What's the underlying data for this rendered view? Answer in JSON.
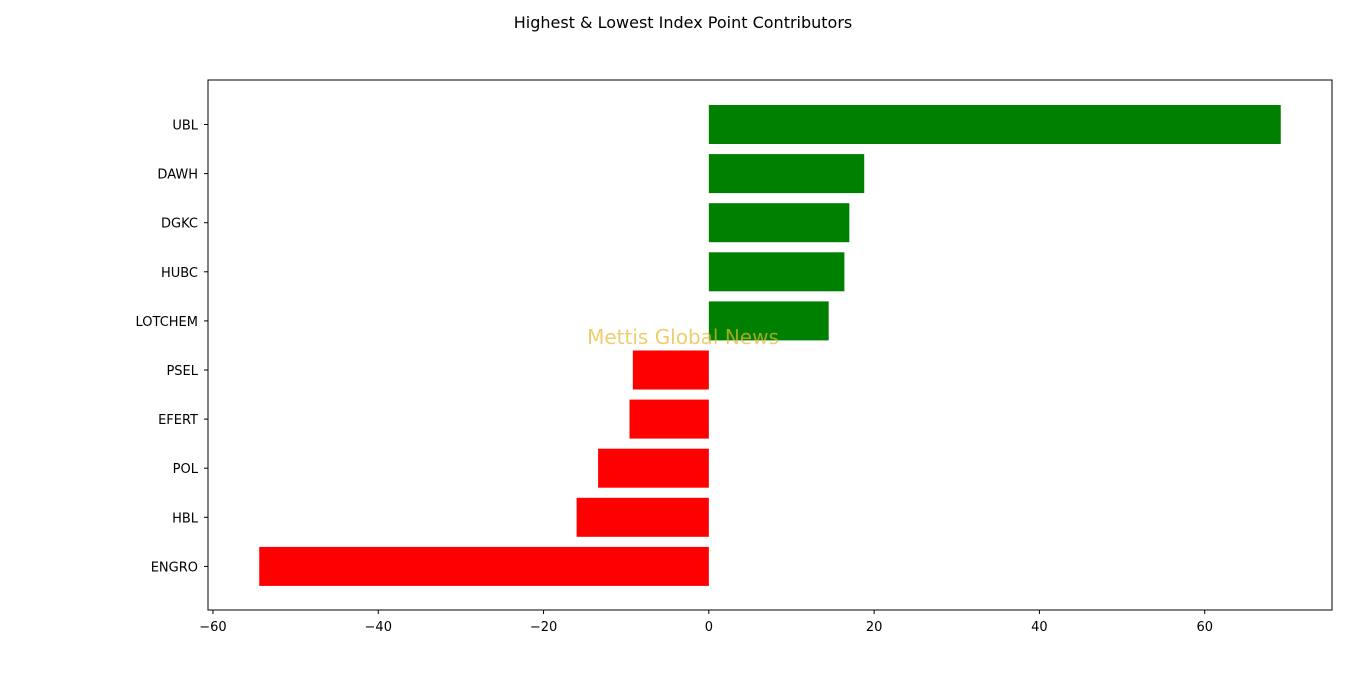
{
  "chart_data": {
    "type": "bar",
    "orientation": "horizontal",
    "title": "Highest & Lowest Index Point Contributors",
    "watermark": "Mettis Global News",
    "categories": [
      "UBL",
      "DAWH",
      "DGKC",
      "HUBC",
      "LOTCHEM",
      "PSEL",
      "EFERT",
      "POL",
      "HBL",
      "ENGRO"
    ],
    "values": [
      69.2,
      18.8,
      17.0,
      16.4,
      14.5,
      -9.2,
      -9.6,
      -13.4,
      -16.0,
      -54.4
    ],
    "colors": [
      "#008000",
      "#008000",
      "#008000",
      "#008000",
      "#008000",
      "#ff0000",
      "#ff0000",
      "#ff0000",
      "#ff0000",
      "#ff0000"
    ],
    "xticks": [
      "−60",
      "−40",
      "−20",
      "0",
      "20",
      "40",
      "60"
    ],
    "xtick_values": [
      -60,
      -40,
      -20,
      0,
      20,
      40,
      60
    ],
    "xlim": [
      -60.6,
      75.4
    ],
    "xlabel": "",
    "ylabel": "",
    "grid": false,
    "legend": "none"
  }
}
